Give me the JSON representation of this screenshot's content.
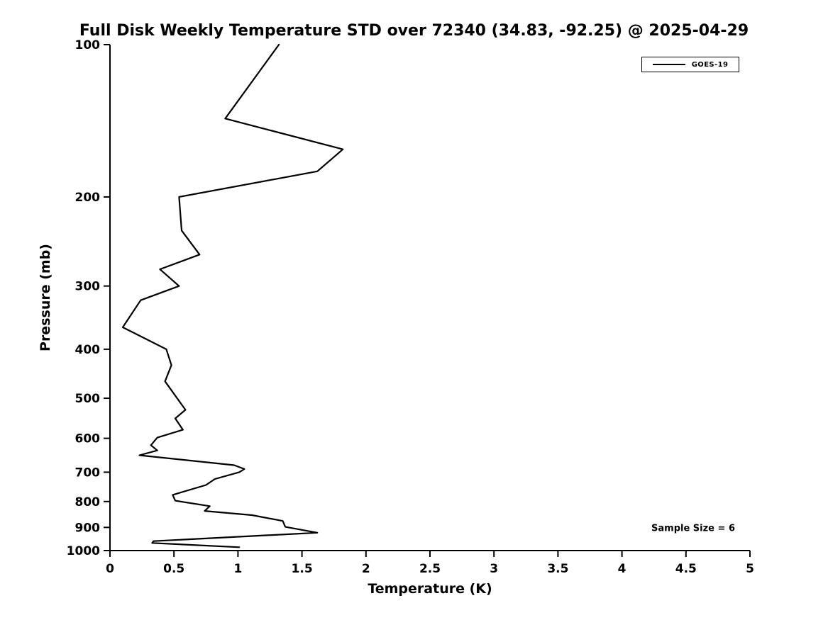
{
  "title": "Full Disk Weekly Temperature STD over 72340 (34.83, -92.25) @ 2025-04-29",
  "xlabel": "Temperature (K)",
  "ylabel": "Pressure (mb)",
  "legend": {
    "label": "GOES-19"
  },
  "annotation": "Sample Size = 6",
  "colors": {
    "line": "#000000",
    "axis": "#000000",
    "background": "#ffffff"
  },
  "chart_data": {
    "type": "line",
    "title": "Full Disk Weekly Temperature STD over 72340 (34.83, -92.25) @ 2025-04-29",
    "xlabel": "Temperature (K)",
    "ylabel": "Pressure (mb)",
    "xlim": [
      0,
      5
    ],
    "ylim": [
      100,
      1000
    ],
    "y_scale": "log",
    "y_inverted": true,
    "grid": false,
    "legend_position": "upper right",
    "x_ticks": [
      "0",
      "0.5",
      "1",
      "1.5",
      "2",
      "2.5",
      "3",
      "3.5",
      "4",
      "4.5",
      "5"
    ],
    "x_tick_values": [
      0,
      0.5,
      1,
      1.5,
      2,
      2.5,
      3,
      3.5,
      4,
      4.5,
      5
    ],
    "y_ticks": [
      "100",
      "200",
      "300",
      "400",
      "500",
      "600",
      "700",
      "800",
      "900",
      "1000"
    ],
    "y_tick_values": [
      100,
      200,
      300,
      400,
      500,
      600,
      700,
      800,
      900,
      1000
    ],
    "annotations": [
      "Sample Size = 6"
    ],
    "series": [
      {
        "name": "GOES-19",
        "color": "#000000",
        "pressure_mb": [
          100,
          140,
          161,
          178,
          200,
          233,
          260,
          278,
          300,
          320,
          362,
          400,
          430,
          463,
          490,
          527,
          548,
          577,
          598,
          619,
          634,
          648,
          678,
          690,
          700,
          722,
          742,
          776,
          797,
          817,
          835,
          851,
          874,
          898,
          922,
          958,
          966,
          985
        ],
        "temperature_std_K": [
          1.32,
          0.9,
          1.82,
          1.62,
          0.54,
          0.56,
          0.7,
          0.39,
          0.54,
          0.24,
          0.1,
          0.44,
          0.48,
          0.43,
          0.5,
          0.59,
          0.51,
          0.57,
          0.37,
          0.32,
          0.37,
          0.23,
          0.97,
          1.05,
          1.01,
          0.82,
          0.75,
          0.49,
          0.51,
          0.78,
          0.74,
          1.11,
          1.35,
          1.37,
          1.62,
          0.34,
          0.33,
          1.01
        ]
      }
    ]
  }
}
